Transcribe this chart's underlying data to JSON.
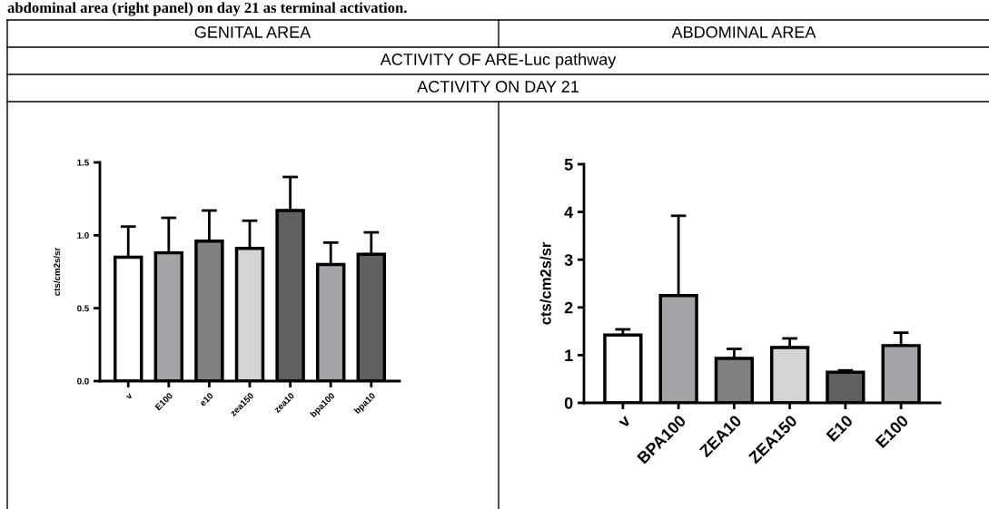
{
  "chart_data": [
    {
      "type": "bar",
      "title": "GENITAL AREA",
      "ylabel": "cts/cm2s/sr",
      "annotations": [
        "abdominal area (right panel) on day 21 as terminal activation.",
        "ACTIVITY OF ARE-Luc pathway",
        "ACTIVITY ON DAY 21"
      ],
      "categories": [
        "v",
        "E100",
        "e10",
        "zea150",
        "zea10",
        "bpa100",
        "bpa10"
      ],
      "values": [
        0.85,
        0.88,
        0.96,
        0.91,
        1.17,
        0.8,
        0.87
      ],
      "errors": [
        [
          0.85,
          1.06
        ],
        [
          0.88,
          1.12
        ],
        [
          0.96,
          1.17
        ],
        [
          0.91,
          1.1
        ],
        [
          1.17,
          1.4
        ],
        [
          0.8,
          0.95
        ],
        [
          0.87,
          1.02
        ]
      ],
      "colors": [
        "#ffffff",
        "#a3a3a8",
        "#808080",
        "#d4d4d4",
        "#606060",
        "#a3a3a8",
        "#606060"
      ],
      "ylim": [
        0,
        1.5
      ],
      "yticks": [
        {
          "value": 0,
          "label": "0.0"
        },
        0.5,
        {
          "value": 1,
          "label": "1.0"
        },
        1.5
      ],
      "grid": false,
      "legend": false
    },
    {
      "type": "bar",
      "title": "ABDOMINAL AREA",
      "ylabel": "cts/cm2s/sr",
      "categories": [
        "v",
        "BPA100",
        "ZEA10",
        "ZEA150",
        "E10",
        "E100"
      ],
      "values": [
        1.42,
        2.25,
        0.93,
        1.16,
        0.64,
        1.2
      ],
      "errors": [
        [
          1.42,
          1.54
        ],
        [
          2.25,
          3.92
        ],
        [
          0.93,
          1.13
        ],
        [
          1.16,
          1.35
        ],
        [
          0.64,
          0.68
        ],
        [
          1.2,
          1.47
        ]
      ],
      "colors": [
        "#ffffff",
        "#a3a3a8",
        "#808080",
        "#d4d4d4",
        "#606060",
        "#a3a3a8"
      ],
      "ylim": [
        0,
        5
      ],
      "yticks": [
        0,
        1,
        2,
        3,
        4,
        5
      ],
      "grid": false,
      "legend": false
    }
  ]
}
